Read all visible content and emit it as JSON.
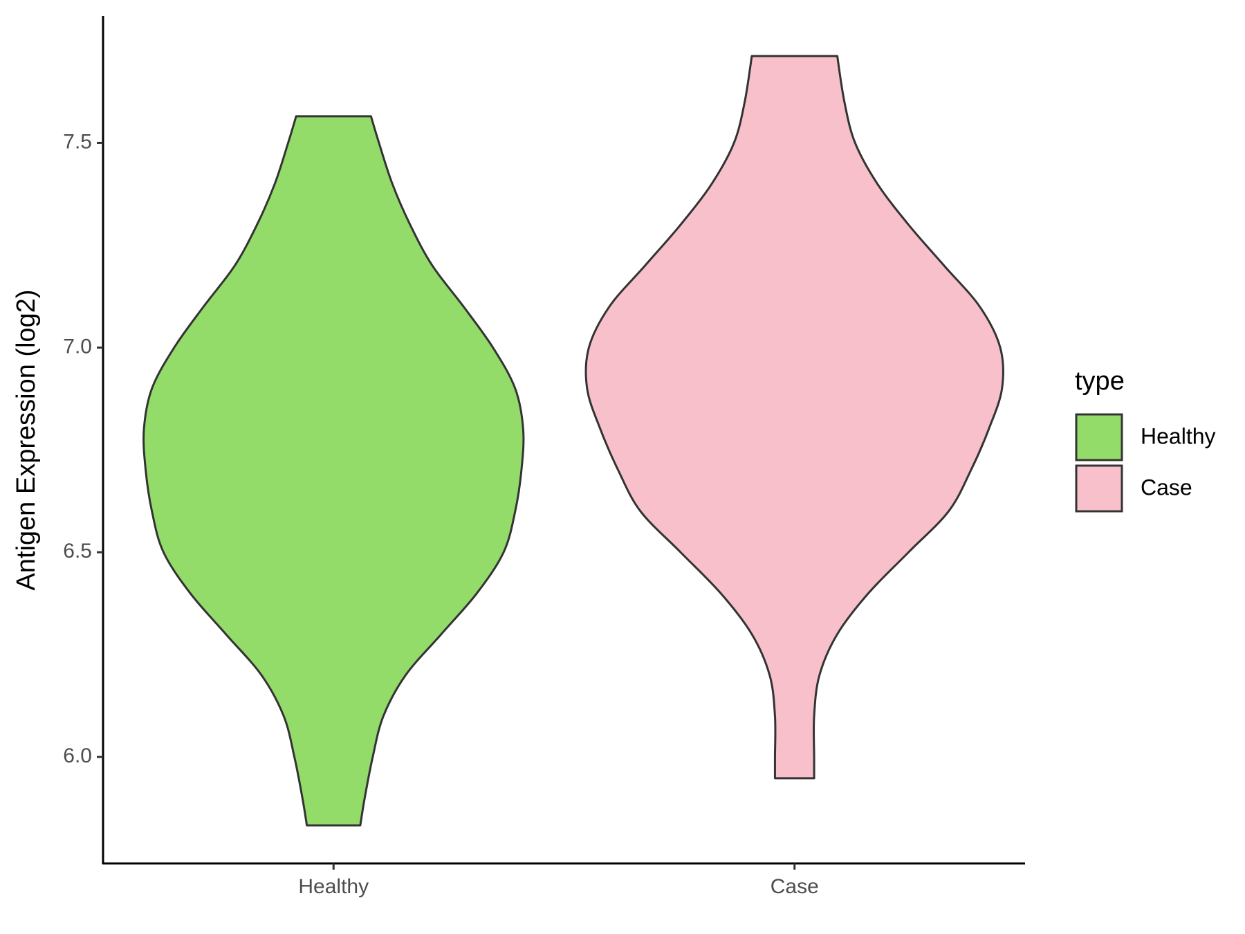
{
  "chart_data": {
    "type": "violin",
    "y_label": "Antigen Expression (log2)",
    "categories": [
      "Healthy",
      "Case"
    ],
    "legend_title": "type",
    "legend": "right",
    "ylim": [
      5.74,
      7.81
    ],
    "yticks": [
      {
        "value": 6,
        "label": "6.0"
      },
      6.5,
      {
        "value": 7,
        "label": "7.0"
      },
      7.5
    ],
    "series": [
      {
        "name": "Healthy",
        "color": "#93dc6a",
        "y": [
          5.833,
          5.9,
          6.0,
          6.1,
          6.2,
          6.3,
          6.4,
          6.5,
          6.6,
          6.7,
          6.8,
          6.9,
          7.0,
          7.1,
          7.2,
          7.3,
          7.4,
          7.5,
          7.565
        ],
        "density": [
          0.3,
          0.35,
          0.44,
          0.56,
          0.81,
          1.21,
          1.61,
          1.91,
          2.04,
          2.11,
          2.13,
          2.04,
          1.79,
          1.46,
          1.11,
          0.86,
          0.66,
          0.51,
          0.42
        ]
      },
      {
        "name": "Case",
        "color": "#f7c0cb",
        "y": [
          5.948,
          6.0,
          6.1,
          6.2,
          6.3,
          6.4,
          6.5,
          6.6,
          6.7,
          6.8,
          6.9,
          7.0,
          7.1,
          7.2,
          7.3,
          7.4,
          7.5,
          7.6,
          7.712
        ],
        "density": [
          0.22,
          0.22,
          0.22,
          0.28,
          0.48,
          0.83,
          1.28,
          1.73,
          1.98,
          2.18,
          2.33,
          2.31,
          2.08,
          1.68,
          1.28,
          0.93,
          0.68,
          0.56,
          0.48
        ]
      }
    ]
  }
}
